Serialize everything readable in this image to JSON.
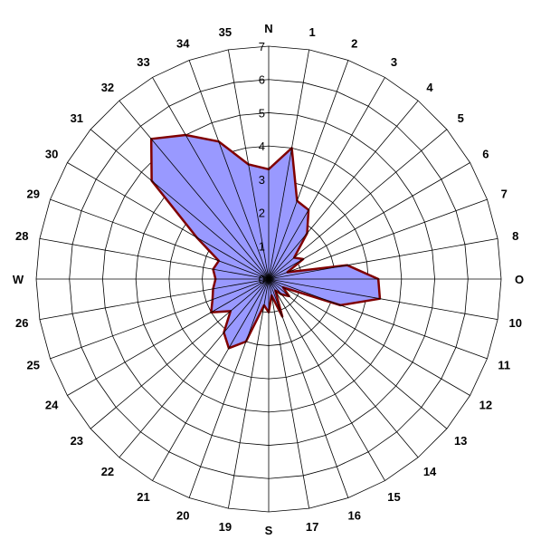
{
  "chart_data": {
    "type": "radar",
    "directions": [
      "N",
      "1",
      "2",
      "3",
      "4",
      "5",
      "6",
      "7",
      "8",
      "O",
      "10",
      "11",
      "12",
      "13",
      "14",
      "15",
      "16",
      "17",
      "S",
      "19",
      "20",
      "21",
      "22",
      "23",
      "24",
      "25",
      "26",
      "W",
      "28",
      "29",
      "30",
      "31",
      "32",
      "33",
      "34",
      "35"
    ],
    "values": [
      3.3,
      4.0,
      2.5,
      2.4,
      1.8,
      1.0,
      1.2,
      0.6,
      2.4,
      3.3,
      3.4,
      2.3,
      0.5,
      0.8,
      0.6,
      0.4,
      1.2,
      0.5,
      1.0,
      0.8,
      2.0,
      2.4,
      2.1,
      1.5,
      2.0,
      1.8,
      1.7,
      1.6,
      1.7,
      1.6,
      2.5,
      4.6,
      5.5,
      5.0,
      4.4,
      3.5
    ],
    "rlim": [
      0,
      7
    ],
    "r_ticks": [
      "0",
      "1",
      "2",
      "3",
      "4",
      "5",
      "6",
      "7"
    ],
    "grid": true,
    "colors": {
      "fill": "#9999ff",
      "line": "#800000",
      "grid": "#000000"
    }
  }
}
